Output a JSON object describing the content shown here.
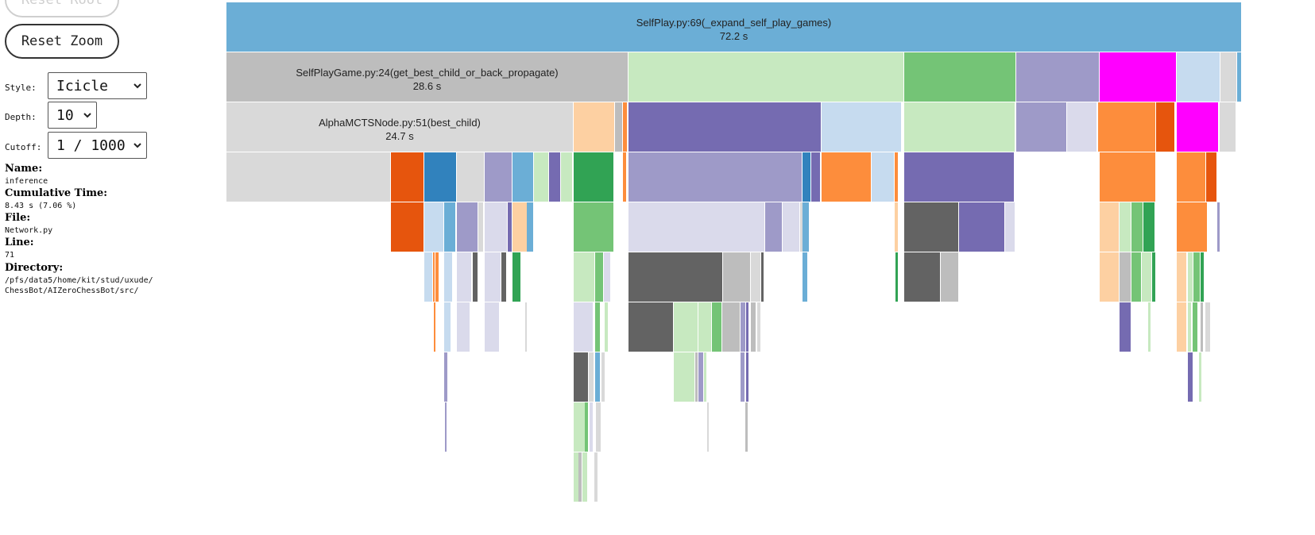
{
  "sidebar": {
    "reset_root_label": "Reset Root",
    "reset_zoom_label": "Reset Zoom",
    "style_label": "Style:",
    "style_value": "Icicle",
    "depth_label": "Depth:",
    "depth_value": "10",
    "cutoff_label": "Cutoff:",
    "cutoff_value": "1 / 1000"
  },
  "info": {
    "name_label": "Name:",
    "name_value": "inference",
    "cumtime_label": "Cumulative Time:",
    "cumtime_value": "8.43 s (7.06 %)",
    "file_label": "File:",
    "file_value": "Network.py",
    "line_label": "Line:",
    "line_value": "71",
    "dir_label": "Directory:",
    "dir_value": "/pfs/data5/home/kit/stud/uxude/ChessBot/AIZeroChessBot/src/"
  },
  "flame": {
    "root": {
      "name": "SelfPlay.py:69(_expand_self_play_games)",
      "time": "72.2 s"
    },
    "level1": {
      "name": "SelfPlayGame.py:24(get_best_child_or_back_propagate)",
      "time": "28.6 s"
    },
    "level2": {
      "name": "AlphaMCTSNode.py:51(best_child)",
      "time": "24.7 s"
    }
  },
  "colors": {
    "blue_root": "#6baed6",
    "gray_light": "#d9d9d9",
    "gray_mid": "#bdbdbd",
    "gray_dark": "#636363",
    "green_light": "#c7e9c0",
    "green_mid": "#74c476",
    "green_dark": "#31a354",
    "purple": "#756bb1",
    "purple_light": "#9e9ac8",
    "lavender": "#dadaeb",
    "orange": "#fd8d3c",
    "orange_dark": "#e6550d",
    "peach": "#fdd0a2",
    "magenta": "#ff00ff",
    "blue_dark": "#3182bd",
    "blue_pale": "#c6dbef"
  }
}
